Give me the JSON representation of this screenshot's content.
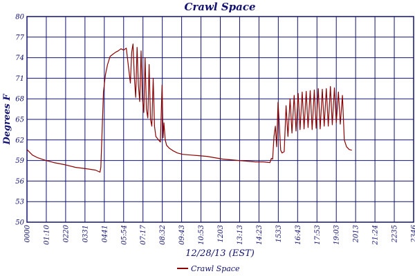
{
  "chart_data": {
    "type": "line",
    "title": "Crawl Space",
    "xlabel": "12/28/13 (EST)",
    "ylabel": "Degrees F",
    "ylim": [
      50,
      80
    ],
    "y_ticks": [
      "80",
      "77",
      "74",
      "71",
      "68",
      "65",
      "62",
      "59",
      "56",
      "53",
      "50"
    ],
    "x_ticks": [
      "0000",
      "01:10",
      "0220",
      "0331",
      "0441",
      "05:54",
      "07:17",
      "08:32",
      "09:43",
      "10:53",
      "1203",
      "13:13",
      "14:23",
      "1533",
      "16:43",
      "17:53",
      "19:03",
      "2013",
      "21:24",
      "2235",
      "2346"
    ],
    "x_range_minutes": [
      0,
      1440
    ],
    "grid": true,
    "legend_position": "bottom-center",
    "series": [
      {
        "name": "Crawl Space",
        "color": "#8b0000",
        "points": [
          [
            0,
            60.6
          ],
          [
            10,
            60.2
          ],
          [
            20,
            59.8
          ],
          [
            40,
            59.4
          ],
          [
            70,
            59.0
          ],
          [
            100,
            58.7
          ],
          [
            140,
            58.4
          ],
          [
            180,
            58.0
          ],
          [
            220,
            57.8
          ],
          [
            255,
            57.6
          ],
          [
            272,
            57.3
          ],
          [
            275,
            58.0
          ],
          [
            285,
            69.0
          ],
          [
            292,
            71.5
          ],
          [
            300,
            73.0
          ],
          [
            310,
            74.2
          ],
          [
            320,
            74.5
          ],
          [
            330,
            74.8
          ],
          [
            340,
            75.0
          ],
          [
            350,
            75.3
          ],
          [
            360,
            75.1
          ],
          [
            370,
            75.4
          ],
          [
            380,
            72.0
          ],
          [
            385,
            70.3
          ],
          [
            390,
            74.8
          ],
          [
            395,
            76.0
          ],
          [
            400,
            71.0
          ],
          [
            405,
            68.2
          ],
          [
            410,
            75.5
          ],
          [
            415,
            70.0
          ],
          [
            420,
            67.6
          ],
          [
            425,
            75.0
          ],
          [
            430,
            68.0
          ],
          [
            435,
            66.0
          ],
          [
            440,
            74.0
          ],
          [
            445,
            66.5
          ],
          [
            450,
            65.2
          ],
          [
            455,
            73.0
          ],
          [
            460,
            65.0
          ],
          [
            465,
            64.0
          ],
          [
            470,
            71.0
          ],
          [
            475,
            64.0
          ],
          [
            480,
            62.5
          ],
          [
            490,
            62.0
          ],
          [
            497,
            61.7
          ],
          [
            503,
            70.0
          ],
          [
            507,
            62.3
          ],
          [
            510,
            64.5
          ],
          [
            515,
            62.0
          ],
          [
            520,
            61.2
          ],
          [
            530,
            60.8
          ],
          [
            545,
            60.4
          ],
          [
            560,
            60.1
          ],
          [
            580,
            59.9
          ],
          [
            610,
            59.8
          ],
          [
            640,
            59.7
          ],
          [
            670,
            59.6
          ],
          [
            700,
            59.4
          ],
          [
            730,
            59.2
          ],
          [
            760,
            59.1
          ],
          [
            790,
            59.0
          ],
          [
            820,
            58.9
          ],
          [
            850,
            58.8
          ],
          [
            880,
            58.8
          ],
          [
            905,
            58.7
          ],
          [
            910,
            59.3
          ],
          [
            915,
            59.2
          ],
          [
            920,
            62.5
          ],
          [
            925,
            64.0
          ],
          [
            930,
            61.0
          ],
          [
            935,
            67.5
          ],
          [
            940,
            64.0
          ],
          [
            945,
            60.5
          ],
          [
            950,
            60.1
          ],
          [
            958,
            60.3
          ],
          [
            965,
            67.0
          ],
          [
            972,
            62.5
          ],
          [
            980,
            68.0
          ],
          [
            987,
            63.0
          ],
          [
            995,
            68.5
          ],
          [
            1002,
            63.3
          ],
          [
            1010,
            68.8
          ],
          [
            1017,
            63.5
          ],
          [
            1025,
            69.0
          ],
          [
            1032,
            63.6
          ],
          [
            1040,
            69.1
          ],
          [
            1047,
            63.8
          ],
          [
            1055,
            69.2
          ],
          [
            1062,
            63.5
          ],
          [
            1070,
            69.3
          ],
          [
            1077,
            63.7
          ],
          [
            1085,
            69.5
          ],
          [
            1092,
            63.6
          ],
          [
            1100,
            69.4
          ],
          [
            1107,
            64.0
          ],
          [
            1115,
            69.5
          ],
          [
            1122,
            64.0
          ],
          [
            1130,
            69.8
          ],
          [
            1137,
            64.2
          ],
          [
            1145,
            69.6
          ],
          [
            1152,
            64.5
          ],
          [
            1160,
            69.0
          ],
          [
            1167,
            64.3
          ],
          [
            1175,
            68.5
          ],
          [
            1182,
            62.0
          ],
          [
            1190,
            61.0
          ],
          [
            1200,
            60.6
          ],
          [
            1210,
            60.5
          ]
        ]
      }
    ]
  }
}
